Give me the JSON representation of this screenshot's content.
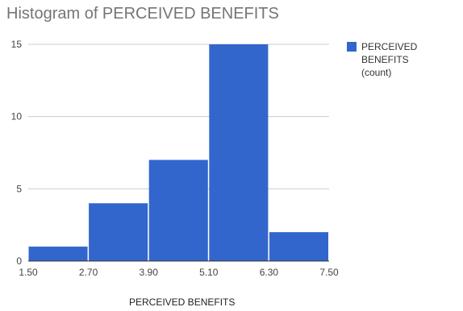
{
  "chart_data": {
    "type": "bar",
    "title": "Histogram of PERCEIVED BENEFITS",
    "xlabel": "PERCEIVED BENEFITS",
    "ylabel": "",
    "x_ticks": [
      "1.50",
      "2.70",
      "3.90",
      "5.10",
      "6.30",
      "7.50"
    ],
    "bins": [
      {
        "from": 1.5,
        "to": 2.7
      },
      {
        "from": 2.7,
        "to": 3.9
      },
      {
        "from": 3.9,
        "to": 5.1
      },
      {
        "from": 5.1,
        "to": 6.3
      },
      {
        "from": 6.3,
        "to": 7.5
      }
    ],
    "series": [
      {
        "name": "PERCEIVED BENEFITS (count)",
        "values": [
          1,
          4,
          7,
          15,
          2
        ],
        "color": "#3366cc"
      }
    ],
    "y_ticks": [
      "0",
      "5",
      "10",
      "15"
    ],
    "ylim": [
      0,
      15
    ],
    "xlim": [
      1.5,
      7.5
    ],
    "grid": true,
    "legend_position": "right"
  },
  "legend": {
    "line1": "PERCEIVED BENEFITS",
    "line2": "(count)"
  }
}
